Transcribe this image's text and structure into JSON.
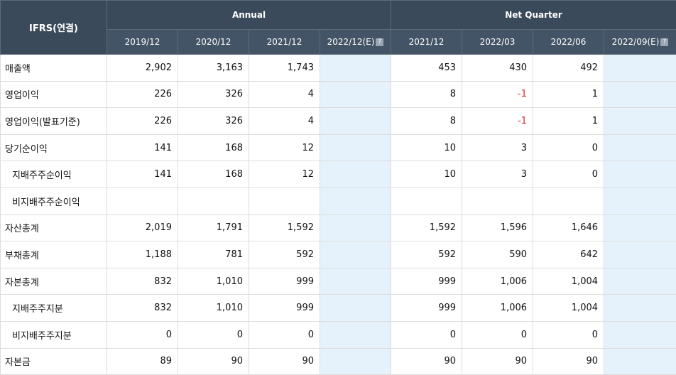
{
  "header": {
    "corner": "IFRS(연결)",
    "groups": [
      {
        "label": "Annual"
      },
      {
        "label": "Net Quarter"
      }
    ],
    "annual_periods": [
      {
        "label": "2019/12"
      },
      {
        "label": "2020/12"
      },
      {
        "label": "2021/12"
      },
      {
        "label": "2022/12(E)",
        "icon": "help-icon"
      }
    ],
    "quarter_periods": [
      {
        "label": "2021/12"
      },
      {
        "label": "2022/03"
      },
      {
        "label": "2022/06"
      },
      {
        "label": "2022/09(E)",
        "icon": "help-icon"
      }
    ]
  },
  "colors": {
    "header_bg": "#3a4a5b",
    "estimate_bg": "#e5f2fb",
    "negative": "#d42a2a"
  },
  "rows": [
    {
      "label": "매출액",
      "indent": false,
      "annual": [
        "2,902",
        "3,163",
        "1,743",
        ""
      ],
      "quarter": [
        "453",
        "430",
        "492",
        ""
      ]
    },
    {
      "label": "영업이익",
      "indent": false,
      "annual": [
        "226",
        "326",
        "4",
        ""
      ],
      "quarter": [
        "8",
        "-1",
        "1",
        ""
      ]
    },
    {
      "label": "영업이익(발표기준)",
      "indent": false,
      "annual": [
        "226",
        "326",
        "4",
        ""
      ],
      "quarter": [
        "8",
        "-1",
        "1",
        ""
      ]
    },
    {
      "label": "당기순이익",
      "indent": false,
      "annual": [
        "141",
        "168",
        "12",
        ""
      ],
      "quarter": [
        "10",
        "3",
        "0",
        ""
      ]
    },
    {
      "label": "지배주주순이익",
      "indent": true,
      "annual": [
        "141",
        "168",
        "12",
        ""
      ],
      "quarter": [
        "10",
        "3",
        "0",
        ""
      ]
    },
    {
      "label": "비지배주주순이익",
      "indent": true,
      "annual": [
        "",
        "",
        "",
        ""
      ],
      "quarter": [
        "",
        "",
        "",
        ""
      ]
    },
    {
      "label": "자산총계",
      "indent": false,
      "annual": [
        "2,019",
        "1,791",
        "1,592",
        ""
      ],
      "quarter": [
        "1,592",
        "1,596",
        "1,646",
        ""
      ]
    },
    {
      "label": "부채총계",
      "indent": false,
      "annual": [
        "1,188",
        "781",
        "592",
        ""
      ],
      "quarter": [
        "592",
        "590",
        "642",
        ""
      ]
    },
    {
      "label": "자본총계",
      "indent": false,
      "annual": [
        "832",
        "1,010",
        "999",
        ""
      ],
      "quarter": [
        "999",
        "1,006",
        "1,004",
        ""
      ]
    },
    {
      "label": "지배주주지분",
      "indent": true,
      "annual": [
        "832",
        "1,010",
        "999",
        ""
      ],
      "quarter": [
        "999",
        "1,006",
        "1,004",
        ""
      ]
    },
    {
      "label": "비지배주주지분",
      "indent": true,
      "annual": [
        "0",
        "0",
        "0",
        ""
      ],
      "quarter": [
        "0",
        "0",
        "0",
        ""
      ]
    },
    {
      "label": "자본금",
      "indent": false,
      "annual": [
        "89",
        "90",
        "90",
        ""
      ],
      "quarter": [
        "90",
        "90",
        "90",
        ""
      ]
    }
  ]
}
